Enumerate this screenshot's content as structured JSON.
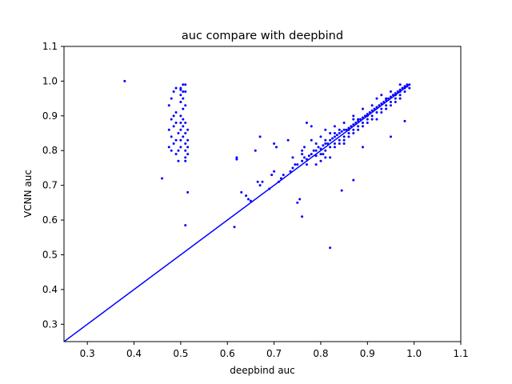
{
  "chart_data": {
    "type": "scatter",
    "title": "auc compare with deepbind",
    "xlabel": "deepbind auc",
    "ylabel": "VCNN auc",
    "xlim": [
      0.25,
      1.1
    ],
    "ylim": [
      0.25,
      1.1
    ],
    "xticks": [
      "0.3",
      "0.4",
      "0.5",
      "0.6",
      "0.7",
      "0.8",
      "0.9",
      "1.0",
      "1.1"
    ],
    "yticks": [
      "0.3",
      "0.4",
      "0.5",
      "0.6",
      "0.7",
      "0.8",
      "0.9",
      "1.0",
      "1.1"
    ],
    "grid": false,
    "legend": "none",
    "color": "#0000ff",
    "reference_line": {
      "from": [
        0.25,
        0.25
      ],
      "to": [
        0.99,
        0.99
      ]
    },
    "series": [
      {
        "points": [
          [
            0.38,
            1.0
          ],
          [
            0.46,
            0.72
          ],
          [
            0.515,
            0.68
          ],
          [
            0.51,
            0.585
          ],
          [
            0.475,
            0.81
          ],
          [
            0.48,
            0.8
          ],
          [
            0.485,
            0.82
          ],
          [
            0.49,
            0.83
          ],
          [
            0.48,
            0.84
          ],
          [
            0.475,
            0.86
          ],
          [
            0.485,
            0.87
          ],
          [
            0.49,
            0.88
          ],
          [
            0.48,
            0.89
          ],
          [
            0.485,
            0.9
          ],
          [
            0.49,
            0.91
          ],
          [
            0.475,
            0.93
          ],
          [
            0.48,
            0.95
          ],
          [
            0.485,
            0.97
          ],
          [
            0.49,
            0.98
          ],
          [
            0.495,
            0.85
          ],
          [
            0.49,
            0.79
          ],
          [
            0.495,
            0.8
          ],
          [
            0.5,
            0.81
          ],
          [
            0.5,
            0.83
          ],
          [
            0.505,
            0.84
          ],
          [
            0.5,
            0.86
          ],
          [
            0.505,
            0.87
          ],
          [
            0.5,
            0.88
          ],
          [
            0.505,
            0.89
          ],
          [
            0.5,
            0.9
          ],
          [
            0.505,
            0.92
          ],
          [
            0.5,
            0.94
          ],
          [
            0.505,
            0.95
          ],
          [
            0.5,
            0.96
          ],
          [
            0.505,
            0.97
          ],
          [
            0.5,
            0.98
          ],
          [
            0.505,
            0.99
          ],
          [
            0.51,
            0.99
          ],
          [
            0.51,
            0.97
          ],
          [
            0.51,
            0.93
          ],
          [
            0.51,
            0.88
          ],
          [
            0.51,
            0.85
          ],
          [
            0.51,
            0.82
          ],
          [
            0.51,
            0.8
          ],
          [
            0.51,
            0.78
          ],
          [
            0.51,
            0.77
          ],
          [
            0.515,
            0.86
          ],
          [
            0.515,
            0.83
          ],
          [
            0.515,
            0.81
          ],
          [
            0.515,
            0.79
          ],
          [
            0.495,
            0.77
          ],
          [
            0.5,
            0.975
          ],
          [
            0.615,
            0.58
          ],
          [
            0.62,
            0.78
          ],
          [
            0.62,
            0.775
          ],
          [
            0.63,
            0.68
          ],
          [
            0.64,
            0.67
          ],
          [
            0.645,
            0.66
          ],
          [
            0.65,
            0.655
          ],
          [
            0.66,
            0.8
          ],
          [
            0.665,
            0.71
          ],
          [
            0.67,
            0.7
          ],
          [
            0.67,
            0.84
          ],
          [
            0.675,
            0.71
          ],
          [
            0.69,
            0.69
          ],
          [
            0.695,
            0.73
          ],
          [
            0.7,
            0.82
          ],
          [
            0.7,
            0.74
          ],
          [
            0.705,
            0.81
          ],
          [
            0.71,
            0.71
          ],
          [
            0.715,
            0.72
          ],
          [
            0.72,
            0.73
          ],
          [
            0.73,
            0.83
          ],
          [
            0.735,
            0.74
          ],
          [
            0.74,
            0.75
          ],
          [
            0.745,
            0.76
          ],
          [
            0.75,
            0.65
          ],
          [
            0.755,
            0.66
          ],
          [
            0.76,
            0.61
          ],
          [
            0.76,
            0.79
          ],
          [
            0.765,
            0.81
          ],
          [
            0.77,
            0.88
          ],
          [
            0.78,
            0.87
          ],
          [
            0.79,
            0.76
          ],
          [
            0.8,
            0.84
          ],
          [
            0.805,
            0.79
          ],
          [
            0.81,
            0.78
          ],
          [
            0.81,
            0.86
          ],
          [
            0.82,
            0.52
          ],
          [
            0.83,
            0.85
          ],
          [
            0.84,
            0.82
          ],
          [
            0.845,
            0.685
          ],
          [
            0.85,
            0.83
          ],
          [
            0.86,
            0.86
          ],
          [
            0.87,
            0.715
          ],
          [
            0.87,
            0.89
          ],
          [
            0.88,
            0.87
          ],
          [
            0.89,
            0.81
          ],
          [
            0.9,
            0.9
          ],
          [
            0.92,
            0.95
          ],
          [
            0.94,
            0.93
          ],
          [
            0.95,
            0.84
          ],
          [
            0.98,
            0.885
          ],
          [
            0.985,
            0.99
          ],
          [
            0.99,
            0.98
          ],
          [
            0.97,
            0.96
          ],
          [
            0.75,
            0.76
          ],
          [
            0.76,
            0.77
          ],
          [
            0.765,
            0.78
          ],
          [
            0.77,
            0.775
          ],
          [
            0.775,
            0.785
          ],
          [
            0.78,
            0.79
          ],
          [
            0.785,
            0.8
          ],
          [
            0.79,
            0.8
          ],
          [
            0.795,
            0.81
          ],
          [
            0.8,
            0.805
          ],
          [
            0.805,
            0.815
          ],
          [
            0.81,
            0.82
          ],
          [
            0.815,
            0.82
          ],
          [
            0.82,
            0.83
          ],
          [
            0.825,
            0.835
          ],
          [
            0.83,
            0.84
          ],
          [
            0.835,
            0.845
          ],
          [
            0.84,
            0.85
          ],
          [
            0.845,
            0.855
          ],
          [
            0.85,
            0.86
          ],
          [
            0.855,
            0.86
          ],
          [
            0.86,
            0.865
          ],
          [
            0.865,
            0.87
          ],
          [
            0.87,
            0.875
          ],
          [
            0.875,
            0.88
          ],
          [
            0.88,
            0.885
          ],
          [
            0.885,
            0.89
          ],
          [
            0.89,
            0.895
          ],
          [
            0.895,
            0.9
          ],
          [
            0.9,
            0.905
          ],
          [
            0.905,
            0.91
          ],
          [
            0.91,
            0.915
          ],
          [
            0.915,
            0.92
          ],
          [
            0.92,
            0.925
          ],
          [
            0.925,
            0.93
          ],
          [
            0.93,
            0.935
          ],
          [
            0.935,
            0.94
          ],
          [
            0.94,
            0.945
          ],
          [
            0.945,
            0.95
          ],
          [
            0.95,
            0.955
          ],
          [
            0.955,
            0.96
          ],
          [
            0.96,
            0.965
          ],
          [
            0.965,
            0.97
          ],
          [
            0.97,
            0.975
          ],
          [
            0.975,
            0.98
          ],
          [
            0.98,
            0.985
          ],
          [
            0.985,
            0.985
          ],
          [
            0.99,
            0.99
          ],
          [
            0.79,
            0.82
          ],
          [
            0.8,
            0.79
          ],
          [
            0.81,
            0.83
          ],
          [
            0.82,
            0.81
          ],
          [
            0.83,
            0.82
          ],
          [
            0.84,
            0.86
          ],
          [
            0.85,
            0.84
          ],
          [
            0.86,
            0.85
          ],
          [
            0.87,
            0.86
          ],
          [
            0.88,
            0.89
          ],
          [
            0.89,
            0.88
          ],
          [
            0.9,
            0.89
          ],
          [
            0.91,
            0.9
          ],
          [
            0.92,
            0.91
          ],
          [
            0.93,
            0.92
          ],
          [
            0.94,
            0.95
          ],
          [
            0.95,
            0.94
          ],
          [
            0.96,
            0.95
          ],
          [
            0.97,
            0.97
          ],
          [
            0.98,
            0.97
          ],
          [
            0.82,
            0.85
          ],
          [
            0.84,
            0.83
          ],
          [
            0.86,
            0.84
          ],
          [
            0.88,
            0.86
          ],
          [
            0.9,
            0.88
          ],
          [
            0.92,
            0.89
          ],
          [
            0.94,
            0.92
          ],
          [
            0.96,
            0.94
          ],
          [
            0.83,
            0.87
          ],
          [
            0.85,
            0.88
          ],
          [
            0.87,
            0.9
          ],
          [
            0.89,
            0.92
          ],
          [
            0.91,
            0.93
          ],
          [
            0.93,
            0.96
          ],
          [
            0.95,
            0.97
          ],
          [
            0.97,
            0.99
          ],
          [
            0.8,
            0.77
          ],
          [
            0.82,
            0.78
          ],
          [
            0.78,
            0.83
          ],
          [
            0.76,
            0.8
          ],
          [
            0.74,
            0.78
          ],
          [
            0.77,
            0.76
          ],
          [
            0.79,
            0.785
          ],
          [
            0.81,
            0.8
          ],
          [
            0.83,
            0.81
          ],
          [
            0.85,
            0.82
          ],
          [
            0.87,
            0.85
          ],
          [
            0.89,
            0.87
          ],
          [
            0.91,
            0.89
          ],
          [
            0.93,
            0.91
          ],
          [
            0.95,
            0.93
          ],
          [
            0.96,
            0.96
          ],
          [
            0.97,
            0.95
          ],
          [
            0.98,
            0.98
          ]
        ]
      }
    ]
  }
}
